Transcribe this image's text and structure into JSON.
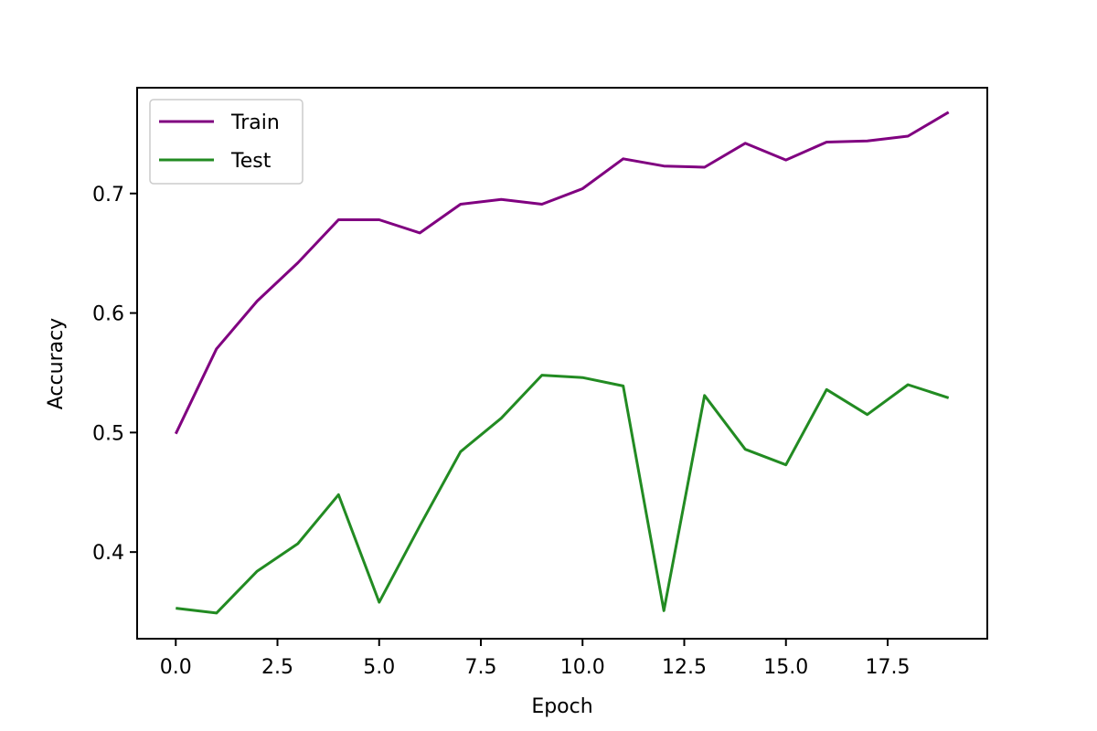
{
  "chart_data": {
    "type": "line",
    "title": "",
    "xlabel": "Epoch",
    "ylabel": "Accuracy",
    "xlim": [
      -0.95,
      19.95
    ],
    "ylim": [
      0.3275,
      0.7885
    ],
    "x_ticks": [
      0.0,
      2.5,
      5.0,
      7.5,
      10.0,
      12.5,
      15.0,
      17.5
    ],
    "x_tick_labels": [
      "0.0",
      "2.5",
      "5.0",
      "7.5",
      "10.0",
      "12.5",
      "15.0",
      "17.5"
    ],
    "y_ticks": [
      0.4,
      0.5,
      0.6,
      0.7
    ],
    "y_tick_labels": [
      "0.4",
      "0.5",
      "0.6",
      "0.7"
    ],
    "grid": false,
    "legend_position": "top-left",
    "x": [
      0,
      1,
      2,
      3,
      4,
      5,
      6,
      7,
      8,
      9,
      10,
      11,
      12,
      13,
      14,
      15,
      16,
      17,
      18,
      19
    ],
    "series": [
      {
        "name": "Train",
        "color": "#800080",
        "values": [
          0.499,
          0.57,
          0.61,
          0.642,
          0.678,
          0.678,
          0.667,
          0.691,
          0.695,
          0.691,
          0.704,
          0.729,
          0.723,
          0.722,
          0.742,
          0.728,
          0.743,
          0.744,
          0.748,
          0.768
        ]
      },
      {
        "name": "Test",
        "color": "#228B22",
        "values": [
          0.353,
          0.349,
          0.384,
          0.407,
          0.448,
          0.358,
          0.422,
          0.484,
          0.512,
          0.548,
          0.546,
          0.539,
          0.351,
          0.531,
          0.486,
          0.473,
          0.536,
          0.515,
          0.54,
          0.529
        ]
      }
    ]
  }
}
